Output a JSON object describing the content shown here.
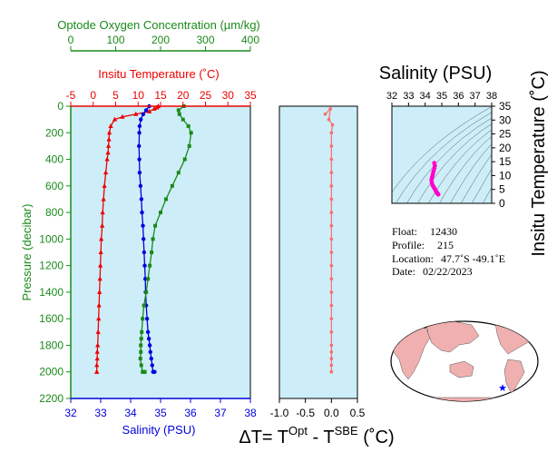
{
  "colors": {
    "oxygen": "#1a8a1a",
    "temperature": "#ee0000",
    "salinity": "#0000dd",
    "pressure_axis": "#1a8a1a",
    "delta": "#ff6a6a",
    "panel_bg": "#cdeef8",
    "ts_trace": "#ff00cc"
  },
  "chart_data": [
    {
      "type": "line",
      "name": "profile",
      "ylabel": "Pressure (decibar)",
      "ylim": [
        0,
        2200
      ],
      "y_ticks": [
        0,
        200,
        400,
        600,
        800,
        1000,
        1200,
        1400,
        1600,
        1800,
        2000,
        2200
      ],
      "y_reversed": true,
      "axes": {
        "oxygen": {
          "label": "Optode Oxygen Concentration (µm/kg)",
          "lim": [
            0,
            400
          ],
          "ticks": [
            0,
            100,
            200,
            300,
            400
          ],
          "position": "top"
        },
        "temperature": {
          "label": "Insitu Temperature (˚C)",
          "lim": [
            -5,
            35
          ],
          "ticks": [
            -5,
            0,
            5,
            10,
            15,
            20,
            25,
            30,
            35
          ],
          "position": "top"
        },
        "salinity": {
          "label": "Salinity (PSU)",
          "lim": [
            32,
            38
          ],
          "ticks": [
            32,
            33,
            34,
            35,
            36,
            37,
            38
          ],
          "position": "bottom"
        }
      },
      "series": [
        {
          "key": "temperature",
          "x": [
            14.5,
            14.2,
            13.6,
            12.5,
            9.5,
            6.5,
            4.8,
            3.9,
            3.6,
            3.5,
            3.4,
            3.3,
            3.1,
            2.8,
            2.5,
            2.3,
            2.1,
            2.0,
            1.8,
            1.7,
            1.6,
            1.5,
            1.4,
            1.3,
            1.2,
            1.1,
            1.0,
            0.9,
            0.9,
            0.8,
            0.8,
            0.8
          ],
          "y": [
            0,
            10,
            20,
            40,
            60,
            80,
            100,
            150,
            200,
            250,
            300,
            350,
            400,
            500,
            600,
            700,
            800,
            900,
            1000,
            1100,
            1200,
            1300,
            1400,
            1500,
            1600,
            1700,
            1800,
            1850,
            1900,
            1950,
            2000,
            2000
          ]
        },
        {
          "key": "salinity",
          "x": [
            34.62,
            34.52,
            34.42,
            34.34,
            34.3,
            34.29,
            34.28,
            34.29,
            34.3,
            34.33,
            34.36,
            34.38,
            34.41,
            34.43,
            34.45,
            34.47,
            34.49,
            34.5,
            34.52,
            34.55,
            34.58,
            34.61,
            34.64,
            34.66,
            34.69,
            34.72,
            34.75,
            34.77,
            34.79,
            34.8
          ],
          "y": [
            0,
            30,
            60,
            100,
            150,
            200,
            300,
            400,
            500,
            600,
            700,
            800,
            900,
            1000,
            1100,
            1200,
            1300,
            1400,
            1500,
            1600,
            1700,
            1750,
            1800,
            1850,
            1900,
            1950,
            2000,
            2000,
            2000,
            2000
          ]
        },
        {
          "key": "oxygen",
          "x": [
            252,
            240,
            242,
            250,
            262,
            268,
            264,
            254,
            240,
            226,
            212,
            200,
            188,
            183,
            180,
            176,
            172,
            168,
            163,
            160,
            158,
            157,
            156,
            156,
            155,
            157,
            160,
            163,
            164,
            165
          ],
          "y": [
            0,
            30,
            60,
            100,
            150,
            200,
            300,
            400,
            500,
            600,
            700,
            800,
            900,
            1000,
            1100,
            1200,
            1300,
            1400,
            1500,
            1600,
            1700,
            1750,
            1800,
            1850,
            1900,
            1950,
            2000,
            2000,
            2000,
            2000
          ]
        }
      ]
    },
    {
      "type": "line",
      "name": "delta_t",
      "xlabel": "ΔT= TOpt - TSBE (˚C)",
      "xlim": [
        -1.0,
        0.5
      ],
      "x_ticks": [
        -1.0,
        -0.5,
        0.0,
        0.5
      ],
      "x": [
        -0.12,
        -0.02,
        -0.05,
        0.02,
        0.0,
        0.0,
        0.0,
        0.0,
        0.0,
        0.0,
        0.0,
        0.0,
        0.0,
        0.0,
        0.0,
        0.0,
        0.0,
        0.0,
        0.0,
        0.0,
        0.0,
        0.0,
        0.0,
        0.0,
        0.0,
        0.0
      ],
      "y": [
        60,
        20,
        100,
        140,
        200,
        300,
        400,
        500,
        600,
        700,
        800,
        900,
        1000,
        1100,
        1200,
        1300,
        1400,
        1500,
        1600,
        1700,
        1800,
        1850,
        1900,
        1950,
        2000,
        2000
      ]
    },
    {
      "type": "scatter",
      "name": "theta_s",
      "title": "Salinity (PSU)",
      "ylabel": "Insitu Temperature (˚C)",
      "xlim": [
        32,
        38
      ],
      "ylim": [
        0,
        35
      ],
      "x_ticks": [
        32,
        33,
        34,
        35,
        36,
        37,
        38
      ],
      "y_ticks": [
        0,
        5,
        10,
        15,
        20,
        25,
        30,
        35
      ],
      "x": [
        34.55,
        34.58,
        34.55,
        34.5,
        34.46,
        34.42,
        34.38,
        34.4,
        34.45,
        34.52,
        34.58,
        34.62,
        34.66,
        34.7,
        34.73,
        34.76,
        34.79
      ],
      "y": [
        14.5,
        13.5,
        12.5,
        11.5,
        10.5,
        9.5,
        8.5,
        7.5,
        6.5,
        5.8,
        5.2,
        4.7,
        4.3,
        3.9,
        3.6,
        3.4,
        3.2
      ]
    }
  ],
  "info": {
    "float_label": "Float:",
    "float_value": "12430",
    "profile_label": "Profile:",
    "profile_value": "215",
    "location_label": "Location:",
    "location_value": "47.7˚S  -49.1˚E",
    "date_label": "Date:",
    "date_value": "02/22/2023"
  },
  "map": {
    "marker_lat": -47.7,
    "marker_lon": -49.1,
    "marker_color": "#0000ff",
    "trail_color": "#cc0000",
    "land_color": "#f0b0b0",
    "ocean_color": "#ffffff"
  }
}
